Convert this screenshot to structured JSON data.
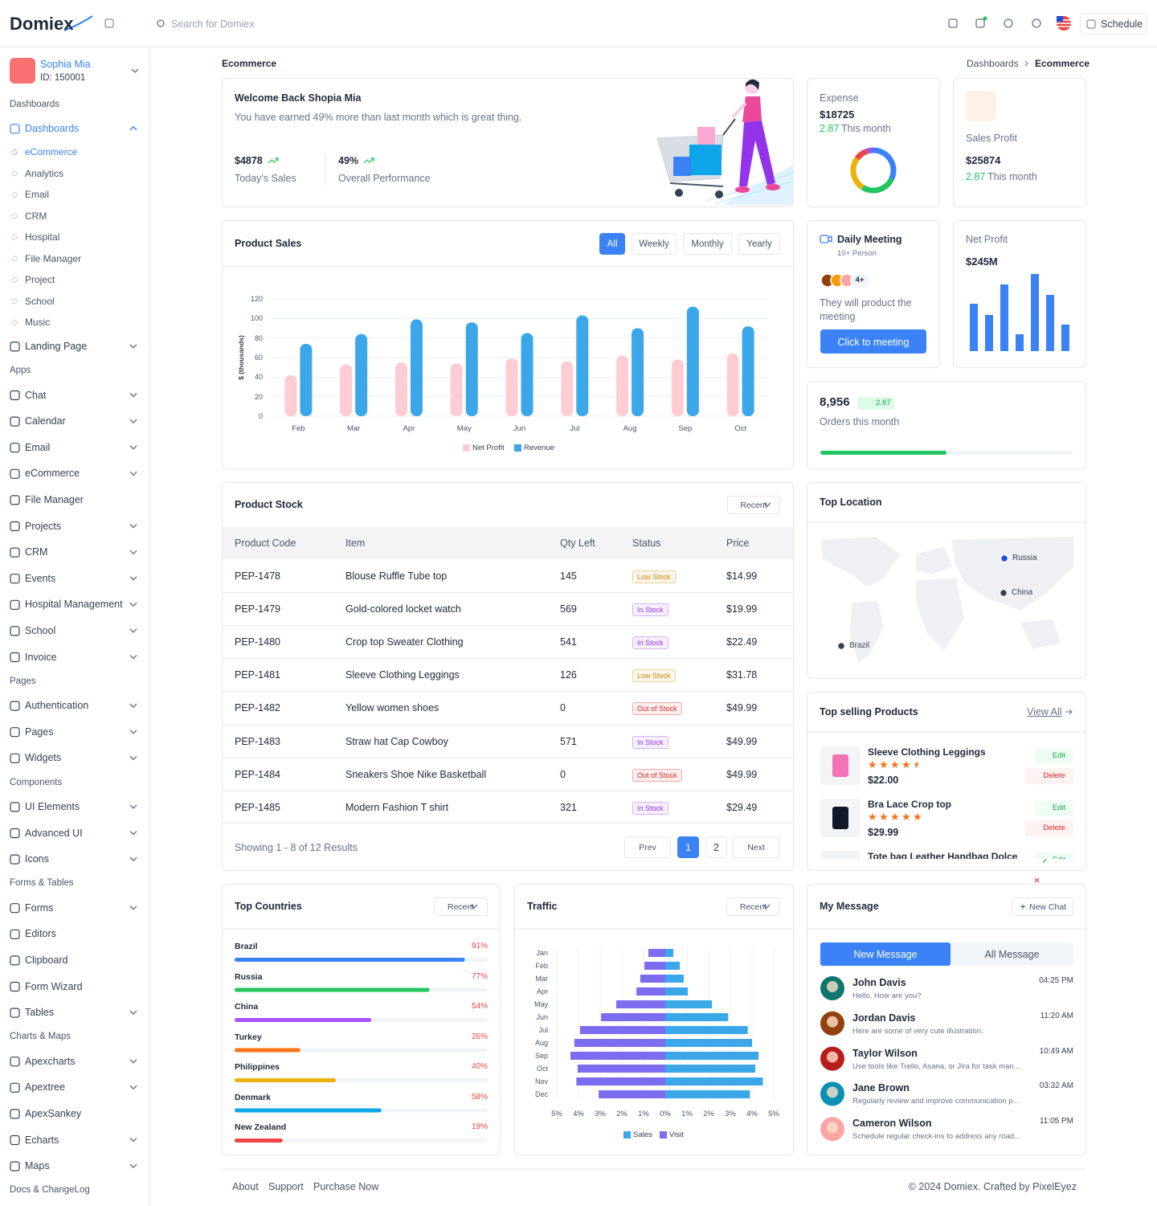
{
  "header": {
    "brand": "Domiex",
    "search": "Search for Domiex",
    "schedule": "Schedule"
  },
  "user": {
    "name": "Sophia Mia",
    "id": "ID: 150001"
  },
  "sidebar": [
    {
      "heading": "Dashboards",
      "items": [
        {
          "label": "Dashboards",
          "submenu": true,
          "open": true,
          "active_sub": 0,
          "sub": [
            "eCommerce",
            "Analytics",
            "Email",
            "CRM",
            "Hospital",
            "File Manager",
            "Project",
            "School",
            "Music"
          ]
        },
        {
          "label": "Landing Page",
          "submenu": true
        }
      ]
    },
    {
      "heading": "Apps",
      "items": [
        {
          "label": "Chat",
          "submenu": true
        },
        {
          "label": "Calendar",
          "submenu": true
        },
        {
          "label": "Email",
          "submenu": true
        },
        {
          "label": "eCommerce",
          "submenu": true
        },
        {
          "label": "File Manager",
          "submenu": false
        },
        {
          "label": "Projects",
          "submenu": true
        },
        {
          "label": "CRM",
          "submenu": true
        },
        {
          "label": "Events",
          "submenu": true
        },
        {
          "label": "Hospital Management",
          "submenu": true
        },
        {
          "label": "School",
          "submenu": true
        },
        {
          "label": "Invoice",
          "submenu": true
        }
      ]
    },
    {
      "heading": "Pages",
      "items": [
        {
          "label": "Authentication",
          "submenu": true
        },
        {
          "label": "Pages",
          "submenu": true
        },
        {
          "label": "Widgets",
          "submenu": true
        }
      ]
    },
    {
      "heading": "Components",
      "items": [
        {
          "label": "UI Elements",
          "submenu": true
        },
        {
          "label": "Advanced UI",
          "submenu": true
        },
        {
          "label": "Icons",
          "submenu": true
        }
      ]
    },
    {
      "heading": "Forms & Tables",
      "items": [
        {
          "label": "Forms",
          "submenu": true
        },
        {
          "label": "Editors",
          "submenu": false
        },
        {
          "label": "Clipboard",
          "submenu": false
        },
        {
          "label": "Form Wizard",
          "submenu": false
        },
        {
          "label": "Tables",
          "submenu": true
        }
      ]
    },
    {
      "heading": "Charts & Maps",
      "items": [
        {
          "label": "Apexcharts",
          "submenu": true
        },
        {
          "label": "Apextree",
          "submenu": true
        },
        {
          "label": "ApexSankey",
          "submenu": false
        },
        {
          "label": "Echarts",
          "submenu": true
        },
        {
          "label": "Maps",
          "submenu": true
        }
      ]
    },
    {
      "heading": "Docs & ChangeLog",
      "items": []
    }
  ],
  "page": {
    "title": "Ecommerce",
    "breadcrumb": [
      "Dashboards",
      "Ecommerce"
    ]
  },
  "welcome": {
    "title": "Welcome Back Shopia Mia",
    "text": "You have earned 49% more than last month which is great thing.",
    "stats": [
      {
        "value": "$4878",
        "label": "Today's Sales"
      },
      {
        "value": "49%",
        "label": "Overall Performance"
      }
    ]
  },
  "expense": {
    "label": "Expense",
    "value": "$18725",
    "change": "2.87",
    "period": "This month",
    "chart": {
      "type": "donut",
      "values": [
        32,
        27,
        26,
        10,
        5
      ],
      "colors": [
        "#3b82f6",
        "#22c55e",
        "#eab308",
        "#ef4444",
        "#8b5cf6"
      ]
    }
  },
  "sales_profit": {
    "label": "Sales Profit",
    "value": "$25874",
    "change": "2.87",
    "period": "This month"
  },
  "product_sales": {
    "title": "Product Sales",
    "filters": [
      "All",
      "Weekly",
      "Monthly",
      "Yearly"
    ],
    "active_filter": 0,
    "chart": {
      "type": "bar",
      "y_label": "$ (thousands)",
      "categories": [
        "Feb",
        "Mar",
        "Apr",
        "May",
        "Jun",
        "Jul",
        "Aug",
        "Sep",
        "Oct"
      ],
      "series": [
        {
          "name": "Net Profit",
          "color": "#fecdd3",
          "values": [
            42,
            53,
            55,
            54,
            59,
            56,
            62,
            58,
            64
          ]
        },
        {
          "name": "Revenue",
          "color": "#3ba7e8",
          "values": [
            74,
            84,
            99,
            96,
            85,
            103,
            90,
            112,
            92
          ]
        }
      ],
      "ylim": [
        0,
        120
      ],
      "yticks": [
        0,
        20,
        40,
        60,
        80,
        100,
        120
      ],
      "grid": true
    }
  },
  "meeting": {
    "title": "Daily Meeting",
    "subtitle": "10+ Person",
    "more": "4+",
    "text": "They will product the meeting",
    "button": "Click to meeting"
  },
  "net_profit": {
    "label": "Net Profit",
    "value": "$245M",
    "chart": {
      "type": "bar",
      "values": [
        59,
        45,
        83,
        21,
        96,
        70,
        33
      ],
      "color": "#3b82f6",
      "ylim": [
        0,
        100
      ]
    }
  },
  "orders": {
    "value": "8,956",
    "change": "2.87",
    "label": "Orders this month",
    "progress": 50
  },
  "product_stock": {
    "title": "Product Stock",
    "filter": "Recent",
    "columns": [
      "Product Code",
      "Item",
      "Qty Left",
      "Status",
      "Price"
    ],
    "rows": [
      {
        "code": "PEP-1478",
        "item": "Blouse Ruffle Tube top",
        "qty": 145,
        "status": "Low Stock",
        "price": "$14.99",
        "status_color": "#ca8a04"
      },
      {
        "code": "PEP-1479",
        "item": "Gold-colored locket watch",
        "qty": 569,
        "status": "In Stock",
        "price": "$19.99",
        "status_color": "#9333ea"
      },
      {
        "code": "PEP-1480",
        "item": "Crop top Sweater Clothing",
        "qty": 541,
        "status": "In Stock",
        "price": "$22.49",
        "status_color": "#9333ea"
      },
      {
        "code": "PEP-1481",
        "item": "Sleeve Clothing Leggings",
        "qty": 126,
        "status": "Low Stock",
        "price": "$31.78",
        "status_color": "#ca8a04"
      },
      {
        "code": "PEP-1482",
        "item": "Yellow women shoes",
        "qty": 0,
        "status": "Out of Stock",
        "price": "$49.99",
        "status_color": "#dc2626"
      },
      {
        "code": "PEP-1483",
        "item": "Straw hat Cap Cowboy",
        "qty": 571,
        "status": "In Stock",
        "price": "$49.99",
        "status_color": "#9333ea"
      },
      {
        "code": "PEP-1484",
        "item": "Sneakers Shoe Nike Basketball",
        "qty": 0,
        "status": "Out of Stock",
        "price": "$49.99",
        "status_color": "#dc2626"
      },
      {
        "code": "PEP-1485",
        "item": "Modern Fashion T shirt",
        "qty": 321,
        "status": "In Stock",
        "price": "$29.49",
        "status_color": "#9333ea"
      }
    ],
    "showing": "Showing 1 - 8 of 12 Results",
    "pagination": {
      "prev": "Prev",
      "pages": [
        "1",
        "2"
      ],
      "current": 0,
      "next": "Next"
    }
  },
  "top_location": {
    "title": "Top Location",
    "markers": [
      {
        "name": "Russia",
        "color": "#1d4ed8"
      },
      {
        "name": "China",
        "color": "#374151"
      },
      {
        "name": "Brazil",
        "color": "#374151"
      }
    ]
  },
  "top_selling": {
    "title": "Top selling Products",
    "link": "View All",
    "edit": "Edit",
    "delete": "Delete",
    "products": [
      {
        "name": "Sleeve Clothing Leggings",
        "rating": 4.5,
        "price": "$22.00",
        "color": "#f472b6"
      },
      {
        "name": "Bra Lace Crop top",
        "rating": 5,
        "price": "$29.99",
        "color": "#111827"
      },
      {
        "name": "Tote bag Leather Handbag Dolce",
        "color": "#dc2626"
      }
    ]
  },
  "top_countries": {
    "title": "Top Countries",
    "filter": "Recent",
    "categories": [
      "Brazil",
      "Russia",
      "China",
      "Turkey",
      "Philippines",
      "Denmark",
      "New Zealand"
    ],
    "values": [
      91,
      77,
      54,
      26,
      40,
      58,
      19
    ],
    "value_labels": [
      "91%",
      "77%",
      "54%",
      "26%",
      "40%",
      "58%",
      "19%"
    ],
    "colors": [
      "#3b82f6",
      "#22c55e",
      "#a855f7",
      "#f97316",
      "#eab308",
      "#0ea5e9",
      "#ef4444"
    ],
    "xlim": [
      0,
      100
    ]
  },
  "traffic": {
    "title": "Traffic",
    "filter": "Recent",
    "chart": {
      "type": "bar",
      "orientation": "horizontal",
      "categories": [
        "Jan",
        "Feb",
        "Mar",
        "Apr",
        "May",
        "Jun",
        "Jul",
        "Aug",
        "Sep",
        "Oct",
        "Nov",
        "Dec"
      ],
      "series": [
        {
          "name": "Sales",
          "color": "#3ba7e8",
          "values": [
            0.37,
            0.67,
            0.85,
            1.04,
            2.15,
            2.9,
            3.8,
            4.0,
            4.3,
            4.15,
            4.5,
            3.9
          ]
        },
        {
          "name": "Visit",
          "color": "#7c6cf0",
          "values": [
            -0.78,
            -0.96,
            -1.15,
            -1.33,
            -2.26,
            -2.96,
            -3.93,
            -4.19,
            -4.37,
            -4.04,
            -4.1,
            -3.07
          ]
        }
      ],
      "xlim": [
        -5,
        5
      ],
      "xticks": [
        {
          "value": -5,
          "label": "5%"
        },
        {
          "value": -4,
          "label": "4%"
        },
        {
          "value": -3,
          "label": "3%"
        },
        {
          "value": -2,
          "label": "2%"
        },
        {
          "value": -1,
          "label": "1%"
        },
        {
          "value": 0,
          "label": "0%"
        },
        {
          "value": 1,
          "label": "1%"
        },
        {
          "value": 2,
          "label": "2%"
        },
        {
          "value": 3,
          "label": "3%"
        },
        {
          "value": 4,
          "label": "4%"
        },
        {
          "value": 5,
          "label": "5%"
        }
      ],
      "grid": true
    }
  },
  "messages": {
    "title": "My Message",
    "new_chat": "New Chat",
    "tabs": [
      "New Message",
      "All Message"
    ],
    "active_tab": 0,
    "items": [
      {
        "name": "John Davis",
        "text": "Hello, How are you?",
        "time": "04:25 PM",
        "avatar": "#0f766e"
      },
      {
        "name": "Jordan Davis",
        "text": "Here are some of very cute illustration.",
        "time": "11:20 AM",
        "avatar": "#92400e"
      },
      {
        "name": "Taylor Wilson",
        "text": "Use tools like Trello, Asana, or Jira for task man...",
        "time": "10:49 AM",
        "avatar": "#b91c1c"
      },
      {
        "name": "Jane Brown",
        "text": "Regularly review and improve communication p...",
        "time": "03:32 AM",
        "avatar": "#0891b2"
      },
      {
        "name": "Cameron Wilson",
        "text": "Schedule regular check-ins to address any road...",
        "time": "11:05 PM",
        "avatar": "#fca5a5"
      }
    ]
  },
  "footer": {
    "links": [
      "About",
      "Support",
      "Purchase Now"
    ],
    "copyright": "© 2024 Domiex. Crafted by PixelEyez"
  }
}
